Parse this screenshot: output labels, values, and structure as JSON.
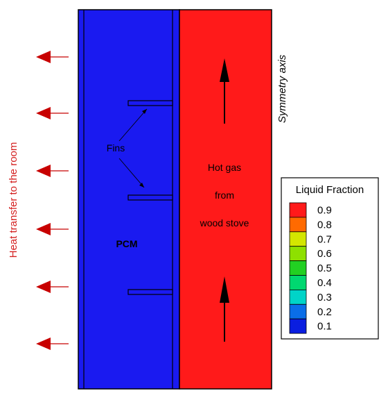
{
  "labels": {
    "heat_transfer": "Heat transfer to the room",
    "symmetry_axis": "Symmetry axis",
    "fins": "Fins",
    "pcm": "PCM",
    "hot_gas_line1": "Hot gas",
    "hot_gas_line2": "from",
    "hot_gas_line3": "wood stove"
  },
  "legend": {
    "title": "Liquid Fraction",
    "levels": [
      {
        "label": "0.9",
        "color": "#ff1a1a"
      },
      {
        "label": "0.8",
        "color": "#ff6a00"
      },
      {
        "label": "0.7",
        "color": "#d4e600"
      },
      {
        "label": "0.6",
        "color": "#8ee000"
      },
      {
        "label": "0.5",
        "color": "#22d022"
      },
      {
        "label": "0.4",
        "color": "#00d870"
      },
      {
        "label": "0.3",
        "color": "#00d4c8"
      },
      {
        "label": "0.2",
        "color": "#0a6ee8"
      },
      {
        "label": "0.1",
        "color": "#0a1ee0"
      }
    ]
  },
  "colors": {
    "pcm_region": "#1a1af0",
    "gas_region": "#ff1a1a",
    "heat_arrow": "#c80000",
    "heat_text": "#d42020"
  },
  "icons": {
    "heat_arrow": "arrow-left-icon",
    "flow_arrow": "arrow-up-icon"
  }
}
